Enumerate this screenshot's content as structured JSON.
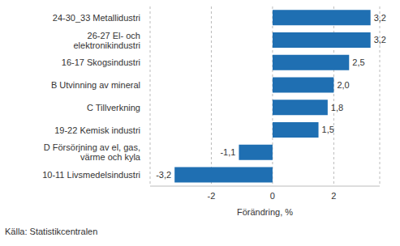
{
  "chart_data": {
    "type": "bar",
    "orientation": "horizontal",
    "categories": [
      "24-30_33 Metallidustri",
      "26-27 El- och elektronikindustri",
      "16-17 Skogsindustri",
      "B Utvinning av mineral",
      "C Tillverkning",
      "19-22 Kemisk industri",
      "D Försörjning av el, gas, värme och kyla",
      "10-11 Livsmedelsindustri"
    ],
    "values": [
      3.2,
      3.2,
      2.5,
      2.0,
      1.8,
      1.5,
      -1.1,
      -3.2
    ],
    "value_labels": [
      "3,2",
      "3,2",
      "2,5",
      "2,0",
      "1,8",
      "1,5",
      "-1,1",
      "-3,2"
    ],
    "data_labels": true,
    "color": "#1f6fb2",
    "xlabel": "Förändring, %",
    "xlim": [
      -4,
      3.5
    ],
    "xticks": [
      -2,
      0,
      2
    ],
    "grid": true,
    "source": "Källa: Statistikcentralen"
  }
}
